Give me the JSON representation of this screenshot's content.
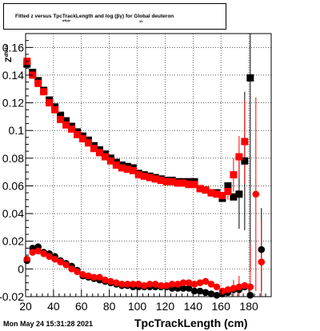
{
  "chart_data": {
    "type": "scatter",
    "title": "Fitted  z    versus TpcTrackLength and log  (βγ) for Global deuteron",
    "title_sub_z": "dNdx",
    "title_sub_log": "10",
    "xlabel": "TpcTrackLength (cm)",
    "ylabel": "Z",
    "ylabel_sub": "dNdx",
    "xlim": [
      20,
      196
    ],
    "ylim": [
      -0.02,
      0.17
    ],
    "x_ticks": [
      20,
      40,
      60,
      80,
      100,
      120,
      140,
      160,
      180
    ],
    "y_ticks": [
      -0.02,
      0,
      0.02,
      0.04,
      0.06,
      0.08,
      0.1,
      0.12,
      0.14,
      0.16
    ],
    "y_tick_labels": [
      "-0.02",
      "0",
      "0.02",
      "0.04",
      "0.06",
      "0.08",
      "0.1",
      "0.12",
      "0.14",
      "0.16"
    ],
    "grid": true,
    "colors": {
      "series_a": "#000000",
      "series_b": "#ff0000"
    },
    "series": [
      {
        "marker": "square",
        "color": "#000000",
        "points": [
          [
            21,
            0.148
          ],
          [
            25,
            0.142
          ],
          [
            29,
            0.136
          ],
          [
            33,
            0.129
          ],
          [
            37,
            0.122
          ],
          [
            41,
            0.117
          ],
          [
            45,
            0.111
          ],
          [
            49,
            0.107
          ],
          [
            53,
            0.103
          ],
          [
            57,
            0.099
          ],
          [
            61,
            0.096
          ],
          [
            65,
            0.093
          ],
          [
            69,
            0.089
          ],
          [
            73,
            0.086
          ],
          [
            77,
            0.083
          ],
          [
            81,
            0.08
          ],
          [
            85,
            0.077
          ],
          [
            89,
            0.075
          ],
          [
            93,
            0.074
          ],
          [
            97,
            0.073
          ],
          [
            101,
            0.069
          ],
          [
            105,
            0.068
          ],
          [
            109,
            0.067
          ],
          [
            113,
            0.066
          ],
          [
            117,
            0.065
          ],
          [
            121,
            0.064
          ],
          [
            125,
            0.064
          ],
          [
            129,
            0.063
          ],
          [
            133,
            0.063
          ],
          [
            137,
            0.063
          ],
          [
            141,
            0.063
          ],
          [
            145,
            0.058
          ],
          [
            149,
            0.057
          ],
          [
            153,
            0.055
          ],
          [
            157,
            0.055
          ],
          [
            161,
            0.051
          ],
          [
            165,
            0.06
          ],
          [
            169,
            0.052
          ],
          [
            173,
            0.054
          ],
          [
            177,
            0.078
          ],
          [
            181,
            0.138
          ]
        ],
        "errors": [
          [
            173,
            0.025
          ],
          [
            177,
            0.05
          ],
          [
            181,
            0.14
          ]
        ]
      },
      {
        "marker": "circle",
        "color": "#000000",
        "points": [
          [
            21,
            0.006
          ],
          [
            25,
            0.015
          ],
          [
            29,
            0.016
          ],
          [
            33,
            0.012
          ],
          [
            37,
            0.011
          ],
          [
            41,
            0.009
          ],
          [
            45,
            0.006
          ],
          [
            49,
            0.004
          ],
          [
            53,
            0.002
          ],
          [
            57,
            -0.001
          ],
          [
            61,
            -0.005
          ],
          [
            65,
            -0.006
          ],
          [
            69,
            -0.007
          ],
          [
            73,
            -0.008
          ],
          [
            77,
            -0.009
          ],
          [
            81,
            -0.01
          ],
          [
            85,
            -0.011
          ],
          [
            89,
            -0.012
          ],
          [
            93,
            -0.012
          ],
          [
            97,
            -0.013
          ],
          [
            101,
            -0.013
          ],
          [
            105,
            -0.013
          ],
          [
            109,
            -0.013
          ],
          [
            113,
            -0.013
          ],
          [
            117,
            -0.013
          ],
          [
            121,
            -0.013
          ],
          [
            125,
            -0.014
          ],
          [
            129,
            -0.014
          ],
          [
            133,
            -0.014
          ],
          [
            137,
            -0.014
          ],
          [
            141,
            -0.016
          ],
          [
            145,
            -0.016
          ],
          [
            149,
            -0.017
          ],
          [
            153,
            -0.018
          ],
          [
            157,
            -0.019
          ],
          [
            161,
            -0.018
          ],
          [
            165,
            -0.017
          ],
          [
            169,
            -0.015
          ],
          [
            173,
            -0.015
          ],
          [
            177,
            -0.013
          ],
          [
            181,
            -0.019
          ],
          [
            189,
            0.014
          ]
        ],
        "errors": [
          [
            189,
            0.03
          ]
        ]
      },
      {
        "marker": "square",
        "color": "#ff0000",
        "points": [
          [
            21,
            0.15
          ],
          [
            25,
            0.14
          ],
          [
            29,
            0.134
          ],
          [
            33,
            0.128
          ],
          [
            37,
            0.12
          ],
          [
            41,
            0.115
          ],
          [
            45,
            0.108
          ],
          [
            49,
            0.104
          ],
          [
            53,
            0.101
          ],
          [
            57,
            0.097
          ],
          [
            61,
            0.094
          ],
          [
            65,
            0.091
          ],
          [
            69,
            0.087
          ],
          [
            73,
            0.084
          ],
          [
            77,
            0.081
          ],
          [
            81,
            0.078
          ],
          [
            85,
            0.075
          ],
          [
            89,
            0.073
          ],
          [
            93,
            0.072
          ],
          [
            97,
            0.071
          ],
          [
            101,
            0.068
          ],
          [
            105,
            0.067
          ],
          [
            109,
            0.066
          ],
          [
            113,
            0.065
          ],
          [
            117,
            0.064
          ],
          [
            121,
            0.063
          ],
          [
            125,
            0.063
          ],
          [
            129,
            0.062
          ],
          [
            133,
            0.062
          ],
          [
            137,
            0.061
          ],
          [
            141,
            0.061
          ],
          [
            145,
            0.058
          ],
          [
            149,
            0.057
          ],
          [
            153,
            0.055
          ],
          [
            157,
            0.054
          ],
          [
            161,
            0.053
          ],
          [
            165,
            0.056
          ],
          [
            169,
            0.068
          ],
          [
            173,
            0.081
          ],
          [
            177,
            0.092
          ]
        ],
        "errors": [
          [
            165,
            0.006
          ],
          [
            169,
            0.012
          ],
          [
            173,
            0.015
          ],
          [
            177,
            0.03
          ]
        ]
      },
      {
        "marker": "circle",
        "color": "#ff0000",
        "points": [
          [
            21,
            0.007
          ],
          [
            25,
            0.012
          ],
          [
            29,
            0.013
          ],
          [
            33,
            0.011
          ],
          [
            37,
            0.009
          ],
          [
            41,
            0.007
          ],
          [
            45,
            0.005
          ],
          [
            49,
            0.003
          ],
          [
            53,
            0.0
          ],
          [
            57,
            -0.002
          ],
          [
            61,
            -0.004
          ],
          [
            65,
            -0.005
          ],
          [
            69,
            -0.006
          ],
          [
            73,
            -0.006
          ],
          [
            77,
            -0.008
          ],
          [
            81,
            -0.009
          ],
          [
            85,
            -0.01
          ],
          [
            89,
            -0.011
          ],
          [
            93,
            -0.011
          ],
          [
            97,
            -0.011
          ],
          [
            101,
            -0.011
          ],
          [
            105,
            -0.012
          ],
          [
            109,
            -0.011
          ],
          [
            113,
            -0.011
          ],
          [
            117,
            -0.012
          ],
          [
            121,
            -0.012
          ],
          [
            125,
            -0.011
          ],
          [
            129,
            -0.011
          ],
          [
            133,
            -0.01
          ],
          [
            137,
            -0.01
          ],
          [
            141,
            -0.011
          ],
          [
            145,
            -0.01
          ],
          [
            149,
            -0.009
          ],
          [
            153,
            -0.011
          ],
          [
            157,
            -0.013
          ],
          [
            161,
            -0.016
          ],
          [
            165,
            -0.015
          ],
          [
            169,
            -0.014
          ],
          [
            173,
            -0.013
          ],
          [
            177,
            -0.012
          ],
          [
            181,
            -0.013
          ],
          [
            185,
            0.054
          ],
          [
            189,
            0.005
          ]
        ],
        "errors": [
          [
            169,
            0.006
          ],
          [
            173,
            0.008
          ],
          [
            181,
            0.03
          ],
          [
            185,
            0.07
          ],
          [
            189,
            0.03
          ]
        ]
      }
    ]
  },
  "footer": {
    "timestamp": "Mon May 24 15:31:28 2021"
  }
}
